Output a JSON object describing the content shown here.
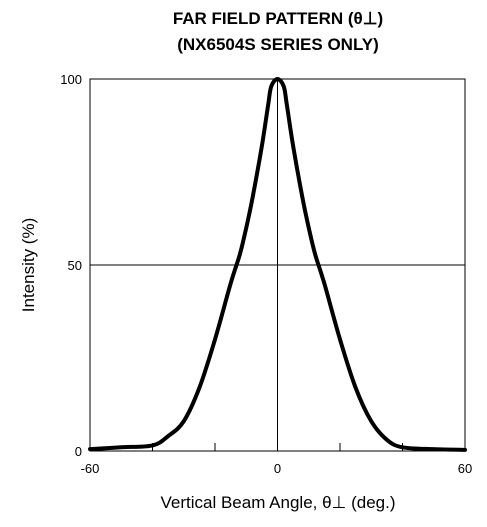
{
  "chart_data": {
    "type": "line",
    "title": [
      "FAR FIELD PATTERN (θ⊥)",
      "(NX6504S SERIES ONLY)"
    ],
    "xlabel": "Vertical Beam Angle, θ⊥  (deg.)",
    "ylabel": "Intensity (%)",
    "xlim": [
      -60,
      60
    ],
    "ylim": [
      0,
      100
    ],
    "xticks": [
      -60,
      0,
      60
    ],
    "yticks": [
      0,
      50,
      100
    ],
    "grid": {
      "vertical_at": [
        0
      ],
      "horizontal_at": [
        50
      ]
    },
    "minor_xticks": [
      -40,
      -20,
      20,
      40
    ],
    "series": [
      {
        "x": [
          -60,
          -50,
          -40,
          -35,
          -30,
          -25,
          -20,
          -15,
          -12,
          -10,
          -8,
          -5,
          -3,
          -2,
          0,
          2,
          3,
          5,
          8,
          10,
          12,
          15,
          20,
          25,
          30,
          35,
          40,
          50,
          60
        ],
        "values": [
          0.5,
          1,
          1.5,
          4,
          8,
          17,
          30,
          45,
          53,
          60,
          68,
          82,
          93,
          98,
          100,
          98,
          93,
          82,
          68,
          60,
          53,
          45,
          30,
          17,
          8,
          3,
          1,
          0.5,
          0.3
        ]
      }
    ]
  }
}
